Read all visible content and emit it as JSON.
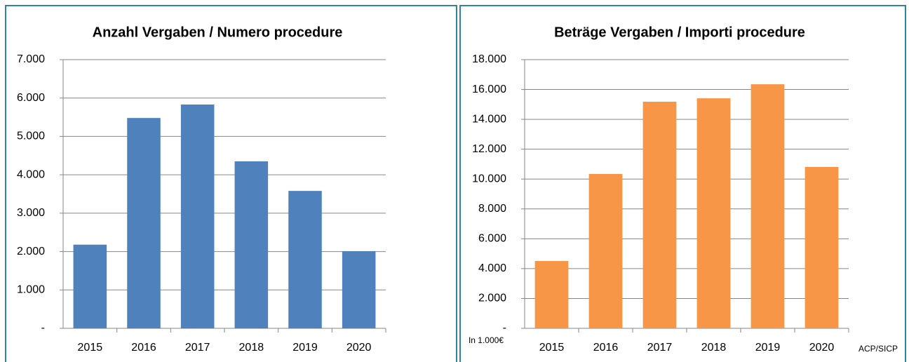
{
  "chart_data": [
    {
      "type": "bar",
      "title": "Anzahl Vergaben / Numero procedure",
      "categories": [
        "2015",
        "2016",
        "2017",
        "2018",
        "2019",
        "2020"
      ],
      "values": [
        2180,
        5480,
        5830,
        4350,
        3580,
        2010
      ],
      "color": "#4f81bd",
      "ylim": [
        0,
        7000
      ],
      "yticks": [
        {
          "value": 0,
          "label": "-"
        },
        {
          "value": 1000,
          "label": "1.000"
        },
        {
          "value": 2000,
          "label": "2.000"
        },
        {
          "value": 3000,
          "label": "3.000"
        },
        {
          "value": 4000,
          "label": "4.000"
        },
        {
          "value": 5000,
          "label": "5.000"
        },
        {
          "value": 6000,
          "label": "6.000"
        },
        {
          "value": 7000,
          "label": "7.000"
        }
      ],
      "grid": true
    },
    {
      "type": "bar",
      "title": "Beträge Vergaben / Importi procedure",
      "categories": [
        "2015",
        "2016",
        "2017",
        "2018",
        "2019",
        "2020"
      ],
      "values": [
        4510,
        10340,
        15180,
        15410,
        16350,
        10810
      ],
      "color": "#f79646",
      "ylim": [
        0,
        18000
      ],
      "yticks": [
        {
          "value": 0,
          "label": "-"
        },
        {
          "value": 2000,
          "label": "2.000"
        },
        {
          "value": 4000,
          "label": "4.000"
        },
        {
          "value": 6000,
          "label": "6.000"
        },
        {
          "value": 8000,
          "label": "8.000"
        },
        {
          "value": 10000,
          "label": "10.000"
        },
        {
          "value": 12000,
          "label": "12.000"
        },
        {
          "value": 14000,
          "label": "14.000"
        },
        {
          "value": 16000,
          "label": "16.000"
        },
        {
          "value": 18000,
          "label": "18.000"
        }
      ],
      "grid": true,
      "annotations": [
        "In 1.000€",
        "ACP/SICP"
      ]
    }
  ]
}
